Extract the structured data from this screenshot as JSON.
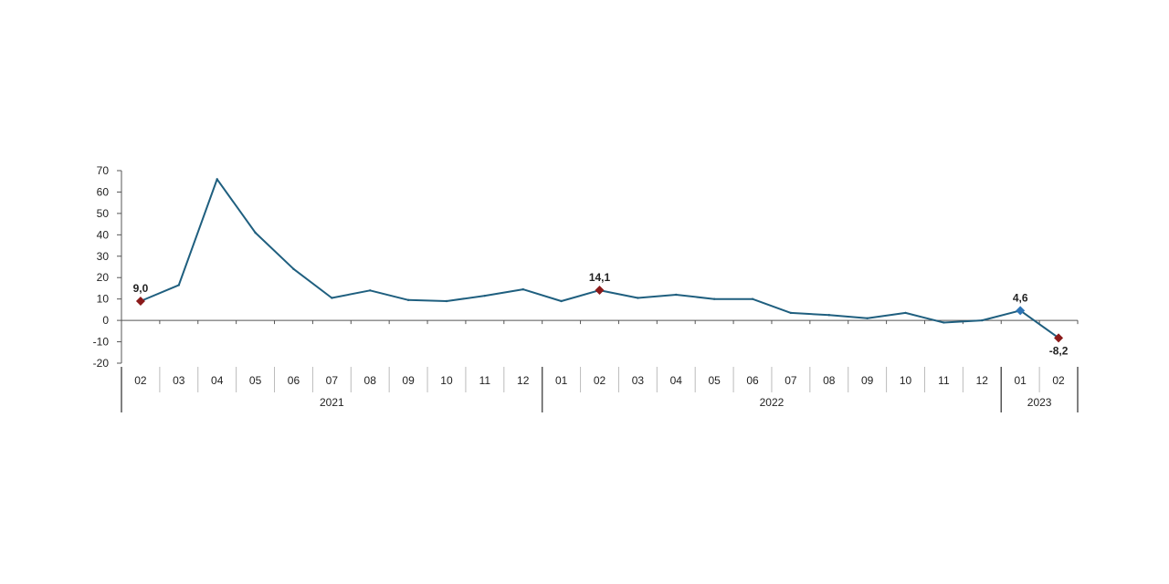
{
  "chart_data": {
    "type": "line",
    "title": "",
    "xlabel": "",
    "ylabel": "",
    "ylim": [
      -20,
      70
    ],
    "yticks": [
      70,
      60,
      50,
      40,
      30,
      20,
      10,
      0,
      -10,
      -20
    ],
    "grid": false,
    "x": [
      "02",
      "03",
      "04",
      "05",
      "06",
      "07",
      "08",
      "09",
      "10",
      "11",
      "12",
      "01",
      "02",
      "03",
      "04",
      "05",
      "06",
      "07",
      "08",
      "09",
      "10",
      "11",
      "12",
      "01",
      "02"
    ],
    "years": [
      {
        "label": "2021",
        "start": 0,
        "end": 10
      },
      {
        "label": "2022",
        "start": 11,
        "end": 22
      },
      {
        "label": "2023",
        "start": 23,
        "end": 24
      }
    ],
    "series": [
      {
        "values": [
          9.0,
          16.5,
          66.0,
          41.0,
          24.0,
          10.5,
          14.0,
          9.5,
          9.0,
          11.5,
          14.5,
          9.0,
          14.1,
          10.5,
          12.0,
          10.0,
          10.0,
          3.5,
          2.5,
          1.0,
          3.5,
          -1.0,
          0.0,
          4.6,
          -8.2
        ],
        "color": "#1f5f7f"
      }
    ],
    "annotations": [
      {
        "index": 0,
        "text": "9,0",
        "marker_color": "#8b1a1a"
      },
      {
        "index": 12,
        "text": "14,1",
        "marker_color": "#8b1a1a"
      },
      {
        "index": 23,
        "text": "4,6",
        "marker_color": "#2e75b6"
      },
      {
        "index": 24,
        "text": "-8,2",
        "marker_color": "#8b1a1a"
      }
    ]
  }
}
